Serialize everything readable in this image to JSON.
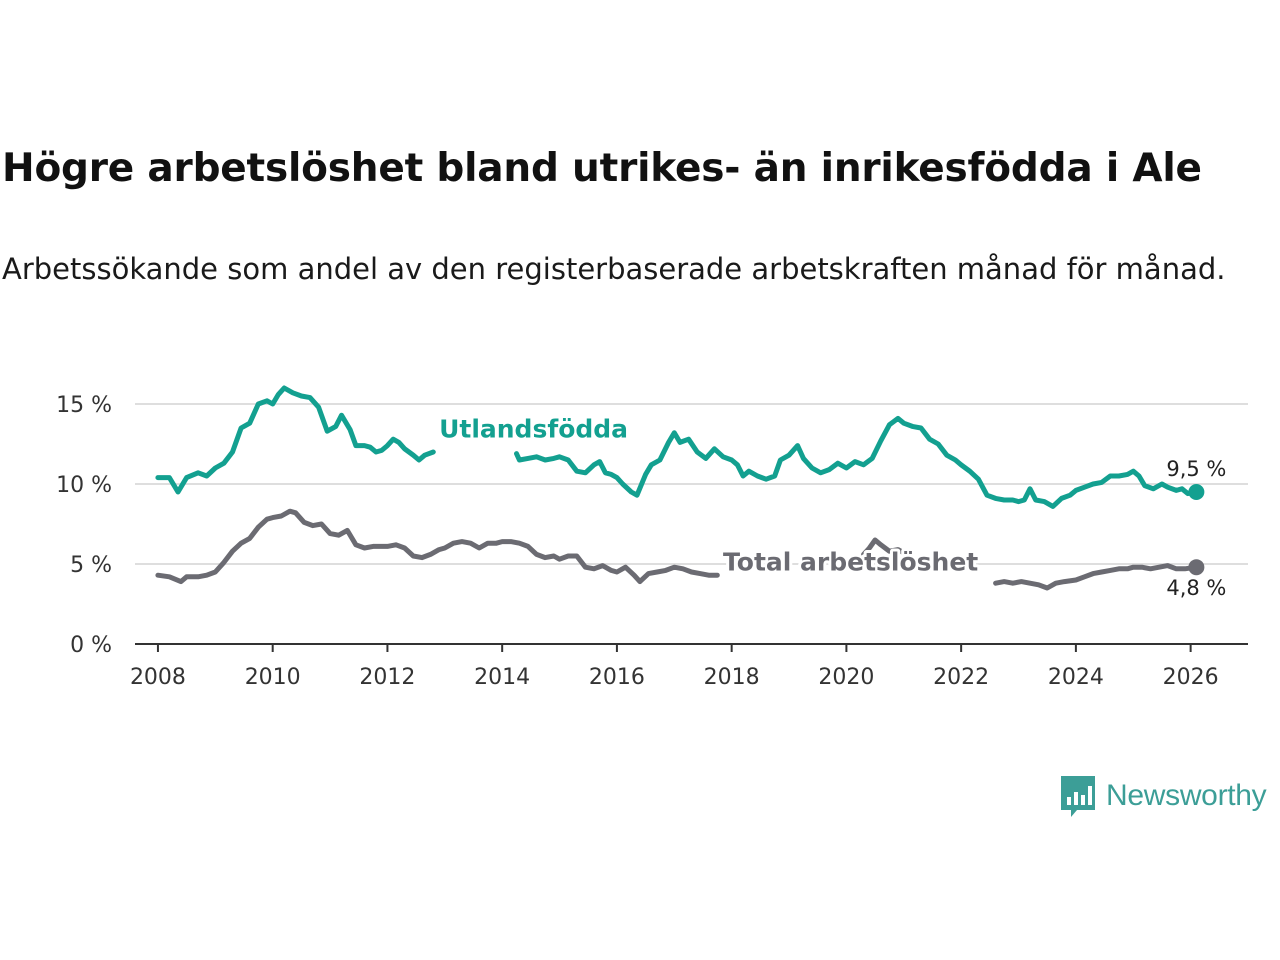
{
  "title": "Högre arbetslöshet bland utrikes- än inrikesfödda i Ale",
  "subtitle": "Arbetssökande som andel av den registerbaserade arbetskraften månad för månad.",
  "brand": {
    "name": "Newsworthy",
    "icon": "newsworthy-logo-icon",
    "color": "#3c9e97"
  },
  "chart_data": {
    "type": "line",
    "title": "Högre arbetslöshet bland utrikes- än inrikesfödda i Ale",
    "subtitle": "Arbetssökande som andel av den registerbaserade arbetskraften månad för månad.",
    "xlabel": "",
    "ylabel": "",
    "xlim": [
      2007.6,
      2027.0
    ],
    "ylim": [
      0,
      16
    ],
    "x_ticks": [
      2008,
      2010,
      2012,
      2014,
      2016,
      2018,
      2020,
      2022,
      2024,
      2026
    ],
    "x_tick_labels": [
      "2008",
      "2010",
      "2012",
      "2014",
      "2016",
      "2018",
      "2020",
      "2022",
      "2024",
      "2026"
    ],
    "y_ticks": [
      0,
      5,
      10,
      15
    ],
    "y_tick_labels": [
      "0 %",
      "5 %",
      "10 %",
      "15 %"
    ],
    "grid": true,
    "series": [
      {
        "name": "Utlandsfödda",
        "color": "#13a090",
        "end_label": "9,5 %",
        "segments": [
          [
            [
              2008.0,
              10.4
            ],
            [
              2008.2,
              10.4
            ],
            [
              2008.35,
              9.5
            ],
            [
              2008.5,
              10.4
            ],
            [
              2008.7,
              10.7
            ],
            [
              2008.85,
              10.5
            ],
            [
              2009.0,
              11.0
            ],
            [
              2009.15,
              11.3
            ],
            [
              2009.3,
              12.0
            ],
            [
              2009.45,
              13.5
            ],
            [
              2009.6,
              13.8
            ],
            [
              2009.75,
              15.0
            ],
            [
              2009.9,
              15.2
            ],
            [
              2010.0,
              15.0
            ],
            [
              2010.1,
              15.6
            ],
            [
              2010.2,
              16.0
            ],
            [
              2010.35,
              15.7
            ],
            [
              2010.5,
              15.5
            ],
            [
              2010.65,
              15.4
            ],
            [
              2010.8,
              14.8
            ],
            [
              2010.95,
              13.3
            ],
            [
              2011.1,
              13.6
            ],
            [
              2011.2,
              14.3
            ],
            [
              2011.35,
              13.4
            ],
            [
              2011.45,
              12.4
            ],
            [
              2011.6,
              12.4
            ],
            [
              2011.7,
              12.3
            ],
            [
              2011.8,
              12.0
            ],
            [
              2011.9,
              12.1
            ],
            [
              2012.0,
              12.4
            ],
            [
              2012.1,
              12.8
            ],
            [
              2012.2,
              12.6
            ],
            [
              2012.3,
              12.2
            ],
            [
              2012.45,
              11.8
            ],
            [
              2012.55,
              11.5
            ],
            [
              2012.65,
              11.8
            ],
            [
              2012.8,
              12.0
            ]
          ],
          [
            [
              2014.25,
              11.9
            ],
            [
              2014.3,
              11.5
            ],
            [
              2014.45,
              11.6
            ],
            [
              2014.6,
              11.7
            ],
            [
              2014.75,
              11.5
            ],
            [
              2014.9,
              11.6
            ],
            [
              2015.0,
              11.7
            ],
            [
              2015.15,
              11.5
            ],
            [
              2015.3,
              10.8
            ],
            [
              2015.45,
              10.7
            ],
            [
              2015.6,
              11.2
            ],
            [
              2015.7,
              11.4
            ],
            [
              2015.8,
              10.7
            ],
            [
              2015.9,
              10.6
            ],
            [
              2016.0,
              10.4
            ],
            [
              2016.1,
              10.0
            ],
            [
              2016.25,
              9.5
            ],
            [
              2016.35,
              9.3
            ],
            [
              2016.5,
              10.6
            ],
            [
              2016.6,
              11.2
            ],
            [
              2016.75,
              11.5
            ],
            [
              2016.9,
              12.6
            ],
            [
              2017.0,
              13.2
            ],
            [
              2017.1,
              12.6
            ],
            [
              2017.25,
              12.8
            ],
            [
              2017.4,
              12.0
            ],
            [
              2017.55,
              11.6
            ],
            [
              2017.7,
              12.2
            ],
            [
              2017.85,
              11.7
            ],
            [
              2018.0,
              11.5
            ],
            [
              2018.1,
              11.2
            ],
            [
              2018.2,
              10.5
            ],
            [
              2018.3,
              10.8
            ],
            [
              2018.45,
              10.5
            ],
            [
              2018.6,
              10.3
            ],
            [
              2018.75,
              10.5
            ],
            [
              2018.85,
              11.5
            ],
            [
              2019.0,
              11.8
            ],
            [
              2019.15,
              12.4
            ],
            [
              2019.25,
              11.6
            ],
            [
              2019.4,
              11.0
            ],
            [
              2019.55,
              10.7
            ],
            [
              2019.7,
              10.9
            ],
            [
              2019.85,
              11.3
            ],
            [
              2020.0,
              11.0
            ],
            [
              2020.15,
              11.4
            ],
            [
              2020.3,
              11.2
            ],
            [
              2020.45,
              11.6
            ],
            [
              2020.6,
              12.7
            ],
            [
              2020.75,
              13.7
            ],
            [
              2020.9,
              14.1
            ],
            [
              2021.0,
              13.8
            ],
            [
              2021.15,
              13.6
            ],
            [
              2021.3,
              13.5
            ],
            [
              2021.45,
              12.8
            ],
            [
              2021.6,
              12.5
            ],
            [
              2021.75,
              11.8
            ],
            [
              2021.9,
              11.5
            ],
            [
              2022.0,
              11.2
            ],
            [
              2022.15,
              10.8
            ],
            [
              2022.3,
              10.3
            ],
            [
              2022.45,
              9.3
            ],
            [
              2022.6,
              9.1
            ],
            [
              2022.75,
              9.0
            ],
            [
              2022.9,
              9.0
            ],
            [
              2023.0,
              8.9
            ],
            [
              2023.1,
              9.0
            ],
            [
              2023.2,
              9.7
            ],
            [
              2023.3,
              9.0
            ],
            [
              2023.45,
              8.9
            ],
            [
              2023.6,
              8.6
            ],
            [
              2023.75,
              9.1
            ],
            [
              2023.9,
              9.3
            ],
            [
              2024.0,
              9.6
            ],
            [
              2024.15,
              9.8
            ],
            [
              2024.3,
              10.0
            ],
            [
              2024.45,
              10.1
            ],
            [
              2024.6,
              10.5
            ],
            [
              2024.75,
              10.5
            ],
            [
              2024.9,
              10.6
            ],
            [
              2025.0,
              10.8
            ],
            [
              2025.1,
              10.5
            ],
            [
              2025.2,
              9.9
            ],
            [
              2025.35,
              9.7
            ],
            [
              2025.5,
              10.0
            ],
            [
              2025.6,
              9.8
            ],
            [
              2025.75,
              9.6
            ],
            [
              2025.85,
              9.7
            ],
            [
              2025.95,
              9.4
            ],
            [
              2026.1,
              9.5
            ]
          ]
        ]
      },
      {
        "name": "Total arbetslöshet",
        "color": "#6b6b72",
        "end_label": "4,8 %",
        "segments": [
          [
            [
              2008.0,
              4.3
            ],
            [
              2008.2,
              4.2
            ],
            [
              2008.4,
              3.9
            ],
            [
              2008.5,
              4.2
            ],
            [
              2008.7,
              4.2
            ],
            [
              2008.85,
              4.3
            ],
            [
              2009.0,
              4.5
            ],
            [
              2009.15,
              5.1
            ],
            [
              2009.3,
              5.8
            ],
            [
              2009.45,
              6.3
            ],
            [
              2009.6,
              6.6
            ],
            [
              2009.75,
              7.3
            ],
            [
              2009.9,
              7.8
            ],
            [
              2010.0,
              7.9
            ],
            [
              2010.15,
              8.0
            ],
            [
              2010.3,
              8.3
            ],
            [
              2010.4,
              8.2
            ],
            [
              2010.55,
              7.6
            ],
            [
              2010.7,
              7.4
            ],
            [
              2010.85,
              7.5
            ],
            [
              2011.0,
              6.9
            ],
            [
              2011.15,
              6.8
            ],
            [
              2011.3,
              7.1
            ],
            [
              2011.45,
              6.2
            ],
            [
              2011.6,
              6.0
            ],
            [
              2011.75,
              6.1
            ],
            [
              2011.9,
              6.1
            ],
            [
              2012.0,
              6.1
            ],
            [
              2012.15,
              6.2
            ],
            [
              2012.3,
              6.0
            ],
            [
              2012.45,
              5.5
            ],
            [
              2012.6,
              5.4
            ],
            [
              2012.75,
              5.6
            ],
            [
              2012.9,
              5.9
            ],
            [
              2013.0,
              6.0
            ],
            [
              2013.15,
              6.3
            ],
            [
              2013.3,
              6.4
            ],
            [
              2013.45,
              6.3
            ],
            [
              2013.6,
              6.0
            ],
            [
              2013.75,
              6.3
            ],
            [
              2013.9,
              6.3
            ],
            [
              2014.0,
              6.4
            ],
            [
              2014.15,
              6.4
            ],
            [
              2014.3,
              6.3
            ],
            [
              2014.45,
              6.1
            ],
            [
              2014.6,
              5.6
            ],
            [
              2014.75,
              5.4
            ],
            [
              2014.9,
              5.5
            ],
            [
              2015.0,
              5.3
            ],
            [
              2015.15,
              5.5
            ],
            [
              2015.3,
              5.5
            ],
            [
              2015.45,
              4.8
            ],
            [
              2015.6,
              4.7
            ],
            [
              2015.75,
              4.9
            ],
            [
              2015.9,
              4.6
            ],
            [
              2016.0,
              4.5
            ],
            [
              2016.15,
              4.8
            ],
            [
              2016.3,
              4.3
            ],
            [
              2016.4,
              3.9
            ],
            [
              2016.55,
              4.4
            ],
            [
              2016.7,
              4.5
            ],
            [
              2016.85,
              4.6
            ],
            [
              2017.0,
              4.8
            ],
            [
              2017.15,
              4.7
            ],
            [
              2017.3,
              4.5
            ],
            [
              2017.45,
              4.4
            ],
            [
              2017.6,
              4.3
            ],
            [
              2017.75,
              4.3
            ]
          ],
          [
            [
              2020.3,
              5.6
            ],
            [
              2020.4,
              6.0
            ],
            [
              2020.5,
              6.5
            ],
            [
              2020.6,
              6.2
            ],
            [
              2020.75,
              5.8
            ],
            [
              2020.9,
              5.9
            ],
            [
              2021.05,
              5.6
            ]
          ],
          [
            [
              2022.6,
              3.8
            ],
            [
              2022.75,
              3.9
            ],
            [
              2022.9,
              3.8
            ],
            [
              2023.05,
              3.9
            ],
            [
              2023.2,
              3.8
            ],
            [
              2023.35,
              3.7
            ],
            [
              2023.5,
              3.5
            ],
            [
              2023.65,
              3.8
            ],
            [
              2023.8,
              3.9
            ],
            [
              2024.0,
              4.0
            ],
            [
              2024.15,
              4.2
            ],
            [
              2024.3,
              4.4
            ],
            [
              2024.45,
              4.5
            ],
            [
              2024.6,
              4.6
            ],
            [
              2024.75,
              4.7
            ],
            [
              2024.9,
              4.7
            ],
            [
              2025.0,
              4.8
            ],
            [
              2025.15,
              4.8
            ],
            [
              2025.3,
              4.7
            ],
            [
              2025.45,
              4.8
            ],
            [
              2025.6,
              4.9
            ],
            [
              2025.75,
              4.7
            ],
            [
              2025.9,
              4.7
            ],
            [
              2026.1,
              4.8
            ]
          ]
        ]
      }
    ],
    "annotations": [
      {
        "text": "Utlandsfödda",
        "series": "Utlandsfödda",
        "x": 2012.9,
        "y": 12.9
      },
      {
        "text": "Total arbetslöshet",
        "series": "Total arbetslöshet",
        "x": 2017.85,
        "y": 4.6
      }
    ]
  }
}
